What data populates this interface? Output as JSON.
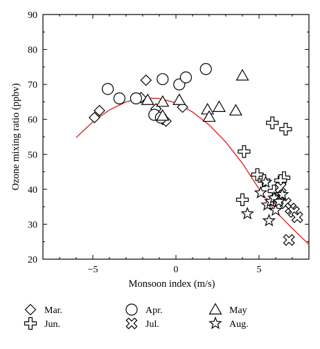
{
  "chart_data": {
    "type": "scatter",
    "title": "",
    "xlabel": "Monsoon index (m/s)",
    "ylabel": "Ozone mixing ratio (ppbv)",
    "xlim": [
      -8,
      8
    ],
    "ylim": [
      20,
      90
    ],
    "x_ticks": [
      -5,
      0,
      5
    ],
    "x_tick_labels": [
      "−5",
      "0",
      "5"
    ],
    "y_ticks": [
      20,
      30,
      40,
      50,
      60,
      70,
      80,
      90
    ],
    "y_tick_labels": [
      "20",
      "30",
      "40",
      "50",
      "60",
      "70",
      "80",
      "90"
    ],
    "grid": false,
    "legend_position": "bottom",
    "fit_curve": {
      "color": "#d42a2a",
      "x": [
        -6,
        -5,
        -4,
        -3,
        -2,
        -1,
        0,
        1,
        2,
        3,
        4,
        5,
        6,
        7,
        8
      ],
      "y": [
        54.8,
        59.3,
        62.7,
        65,
        66.1,
        66,
        64.7,
        62.1,
        58.4,
        53.5,
        47.4,
        40.1,
        33.6,
        28.8,
        24.2
      ]
    },
    "series": [
      {
        "name": "Mar.",
        "marker": "diamond",
        "x": [
          -4.9,
          -4.6,
          -2.1,
          -1.8,
          -1.2,
          -0.8,
          -0.6,
          0.4
        ],
        "y": [
          60.5,
          62.5,
          66.2,
          71.2,
          63,
          60,
          59.5,
          63.5
        ]
      },
      {
        "name": "Apr.",
        "marker": "circle",
        "x": [
          -4.1,
          -3.4,
          -2.4,
          -1.3,
          -0.9,
          -0.8,
          0.2,
          0.6,
          1.8
        ],
        "y": [
          68.7,
          66,
          66,
          61.3,
          60.5,
          71.5,
          70,
          72,
          74.4
        ]
      },
      {
        "name": "May",
        "marker": "triangle",
        "x": [
          -1.7,
          -0.8,
          -0.8,
          0.2,
          1.9,
          2.0,
          2.6,
          3.6,
          4.0
        ],
        "y": [
          65.5,
          65,
          61,
          65.5,
          62.8,
          60.7,
          63.5,
          62.5,
          72.5
        ]
      },
      {
        "name": "Jun.",
        "marker": "plus",
        "x": [
          4.1,
          4.0,
          4.9,
          5.3,
          5.8,
          6.6,
          6.5,
          6.3,
          5.9
        ],
        "y": [
          50.8,
          37,
          44.2,
          42.5,
          59,
          57.2,
          43.3,
          42.5,
          39.5
        ]
      },
      {
        "name": "Jul.",
        "marker": "x",
        "x": [
          6.1,
          6.3,
          6.6,
          6.9,
          7.1,
          7.3,
          6.8
        ],
        "y": [
          37.5,
          40.5,
          36,
          34.5,
          33.5,
          32,
          25.5
        ]
      },
      {
        "name": "Aug.",
        "marker": "star",
        "x": [
          4.3,
          5.1,
          5.5,
          5.6,
          5.7,
          5.9,
          6.0,
          6.2,
          5.4,
          6.4
        ],
        "y": [
          33,
          39,
          35.5,
          31,
          36.5,
          37.5,
          34,
          36.5,
          42,
          38.5
        ]
      }
    ]
  }
}
